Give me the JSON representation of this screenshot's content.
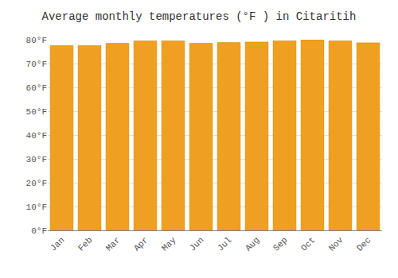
{
  "chart_data": {
    "type": "bar",
    "title": "Average monthly temperatures (°F ) in Citaritih",
    "categories": [
      "Jan",
      "Feb",
      "Mar",
      "Apr",
      "May",
      "Jun",
      "Jul",
      "Aug",
      "Sep",
      "Oct",
      "Nov",
      "Dec"
    ],
    "values": [
      77.5,
      77.5,
      78.5,
      79.5,
      79.5,
      78.5,
      78.8,
      79.0,
      79.5,
      80.0,
      79.5,
      78.7
    ],
    "color": "#F0A020",
    "ylim": [
      0,
      80
    ],
    "yticks": [
      {
        "value": 0,
        "label": "0°F"
      },
      {
        "value": 10,
        "label": "10°F"
      },
      {
        "value": 20,
        "label": "20°F"
      },
      {
        "value": 30,
        "label": "30°F"
      },
      {
        "value": 40,
        "label": "40°F"
      },
      {
        "value": 50,
        "label": "50°F"
      },
      {
        "value": 60,
        "label": "60°F"
      },
      {
        "value": 70,
        "label": "70°F"
      },
      {
        "value": 80,
        "label": "80°F"
      }
    ],
    "grid": true
  }
}
